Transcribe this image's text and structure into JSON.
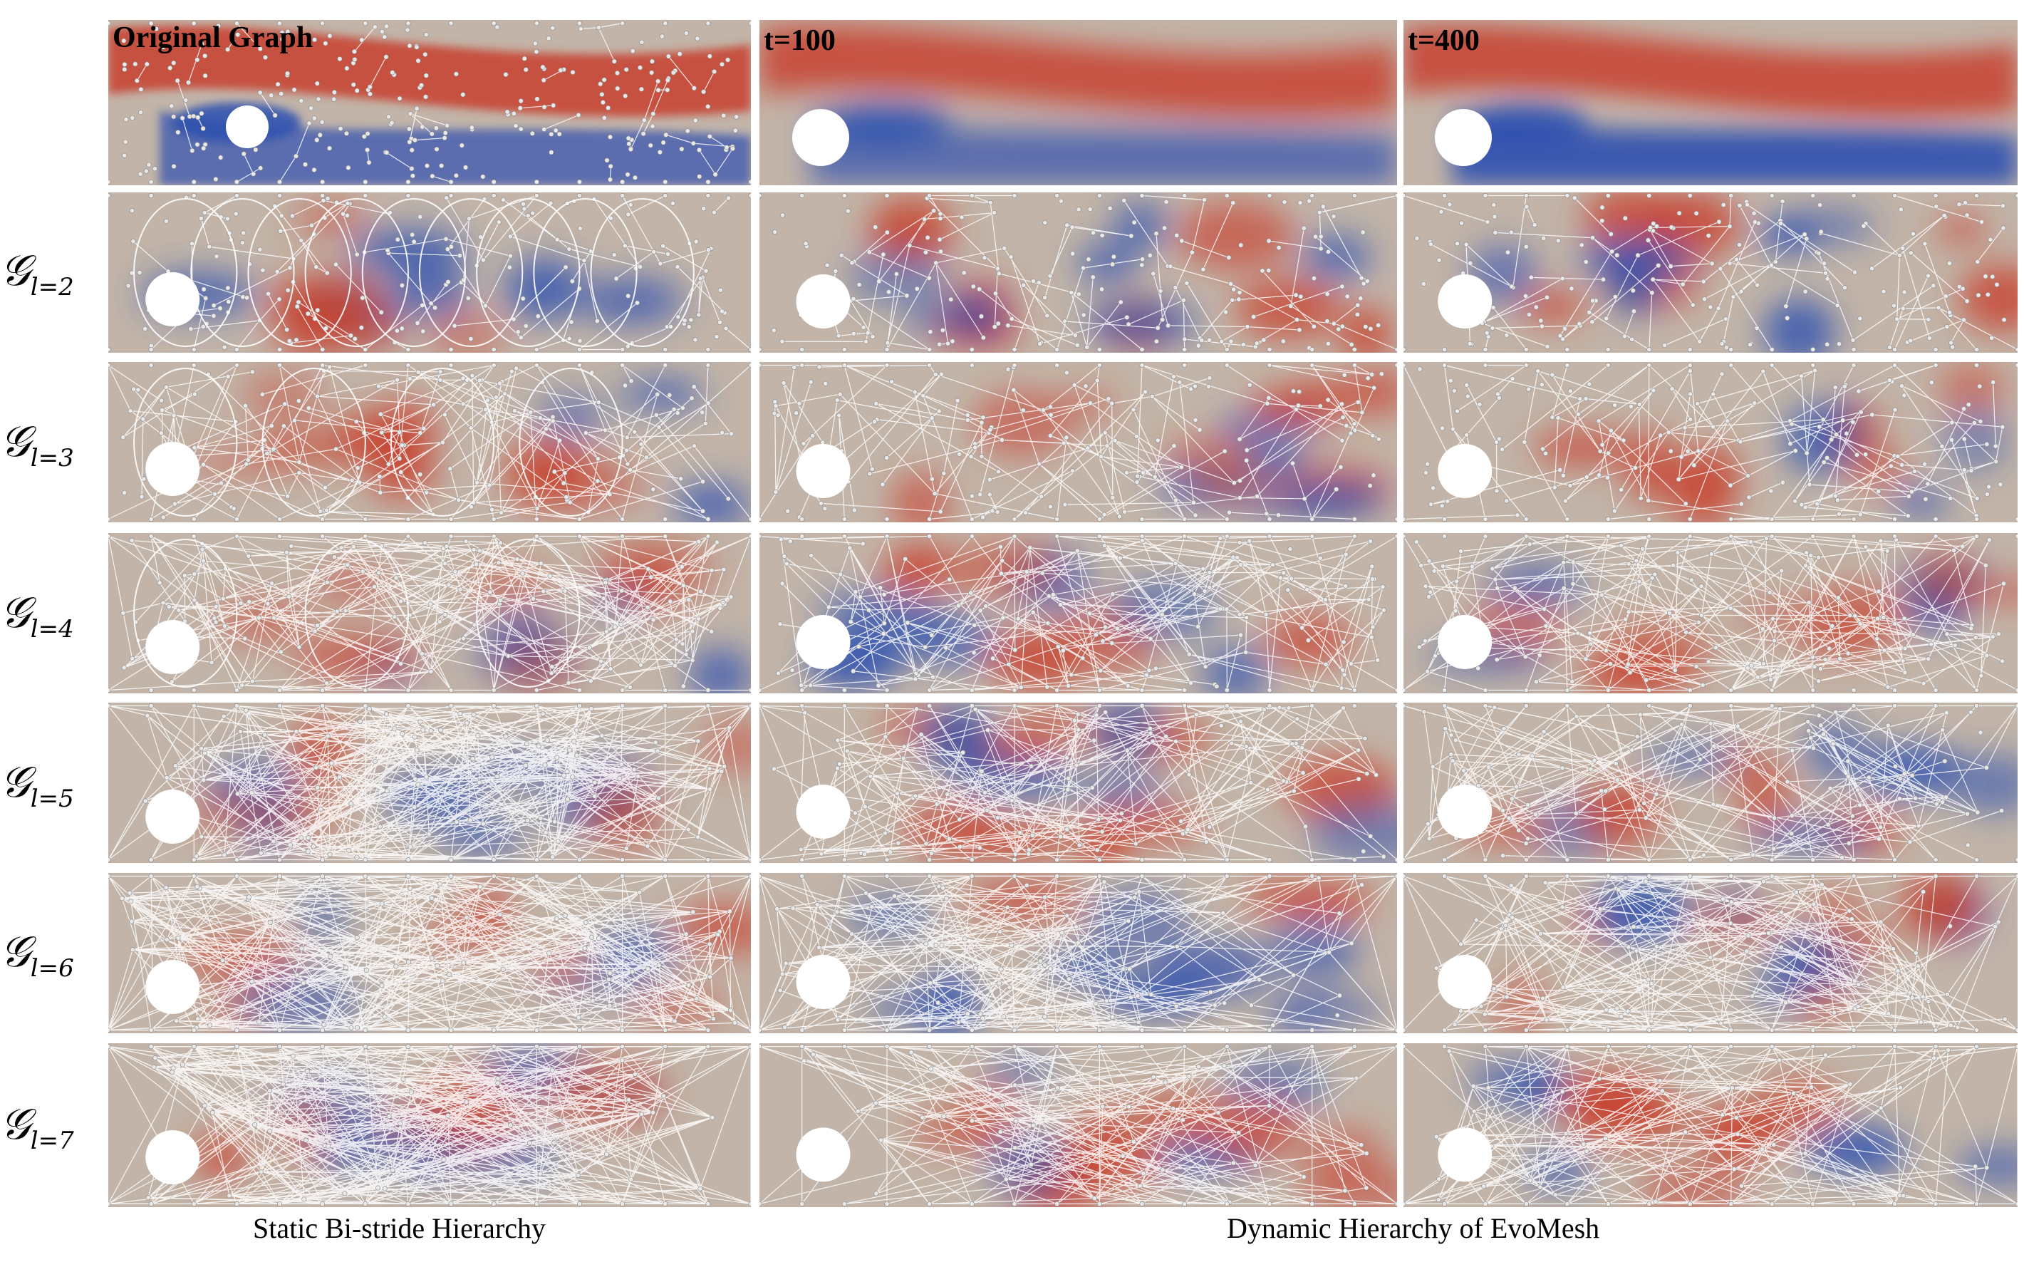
{
  "header": {
    "original_title": "Original Graph",
    "t100": "t=100",
    "t400": "t=400"
  },
  "rows": [
    {
      "base": "𝒢",
      "sub": "l=2"
    },
    {
      "base": "𝒢",
      "sub": "l=3"
    },
    {
      "base": "𝒢",
      "sub": "l=4"
    },
    {
      "base": "𝒢",
      "sub": "l=5"
    },
    {
      "base": "𝒢",
      "sub": "l=6"
    },
    {
      "base": "𝒢",
      "sub": "l=7"
    }
  ],
  "captions": {
    "left": "Static Bi-stride Hierarchy",
    "right": "Dynamic Hierarchy of EvoMesh"
  },
  "colors": {
    "flow_red": "#c8402d",
    "flow_blue": "#2c4fb0",
    "flow_neutral": "#c2b4a8",
    "edge": "#ffffff",
    "node": "#e8e8e8"
  }
}
